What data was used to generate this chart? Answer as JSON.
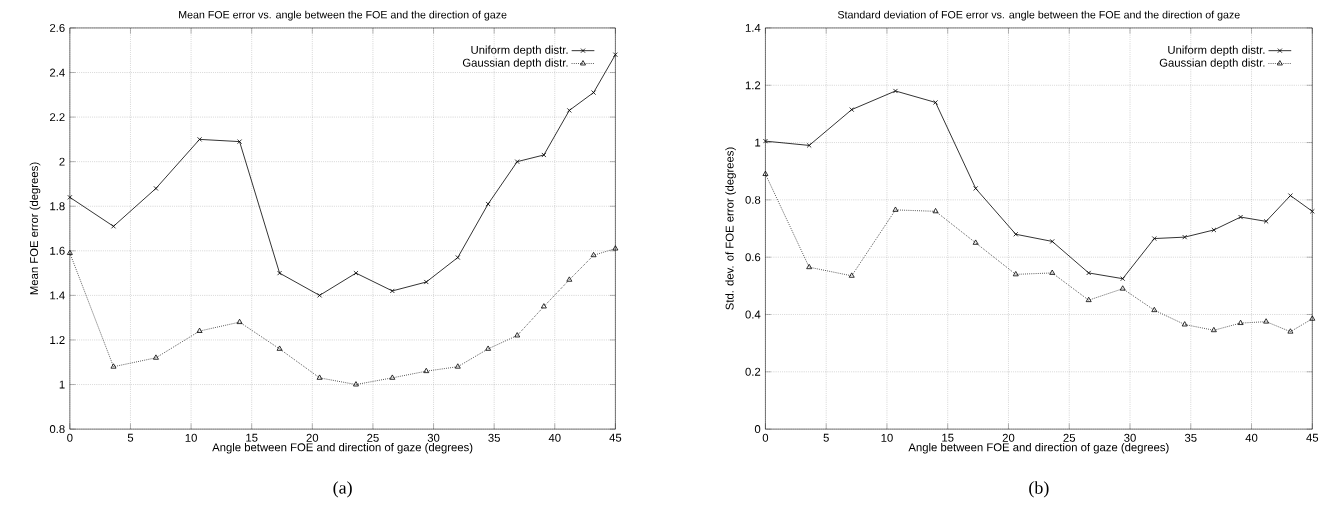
{
  "chart_data": [
    {
      "type": "line",
      "title": "Mean FOE error vs. angle between the FOE and the direction of gaze",
      "xlabel": "Angle between FOE and direction of gaze (degrees)",
      "ylabel": "Mean FOE error (degrees)",
      "annotations": [
        "(a)"
      ],
      "x": [
        0,
        3.6,
        7.1,
        10.7,
        14.0,
        17.3,
        20.6,
        23.6,
        26.6,
        29.4,
        32.0,
        34.5,
        36.9,
        39.1,
        41.2,
        43.2,
        45
      ],
      "series": [
        {
          "name": "Uniform depth distr.",
          "color": "#000000",
          "marker": "cross",
          "line_style": "solid",
          "values": [
            1.84,
            1.71,
            1.88,
            2.1,
            2.09,
            1.5,
            1.4,
            1.5,
            1.42,
            1.46,
            1.57,
            1.81,
            2.0,
            2.03,
            2.23,
            2.31,
            2.48
          ]
        },
        {
          "name": "Gaussian depth distr.",
          "color": "#000000",
          "marker": "triangle",
          "line_style": "dotted",
          "values": [
            1.59,
            1.08,
            1.12,
            1.24,
            1.28,
            1.16,
            1.03,
            1.0,
            1.03,
            1.06,
            1.08,
            1.16,
            1.22,
            1.35,
            1.47,
            1.58,
            1.61
          ]
        }
      ],
      "xlim": [
        0,
        45
      ],
      "xticks": [
        0,
        5,
        10,
        15,
        20,
        25,
        30,
        35,
        40,
        45
      ],
      "ylim": [
        0.8,
        2.6
      ],
      "yticks": [
        0.8,
        1,
        1.2,
        1.4,
        1.6,
        1.8,
        2,
        2.2,
        2.4,
        2.6
      ],
      "grid": true,
      "legend": "top right"
    },
    {
      "type": "line",
      "title": "Standard deviation of FOE error vs. angle between the FOE and the direction of gaze",
      "xlabel": "Angle between FOE and direction of gaze (degrees)",
      "ylabel": "Std. dev. of FOE error (degrees)",
      "annotations": [
        "(b)"
      ],
      "x": [
        0,
        3.6,
        7.1,
        10.7,
        14.0,
        17.3,
        20.6,
        23.6,
        26.6,
        29.4,
        32.0,
        34.5,
        36.9,
        39.1,
        41.2,
        43.2,
        45
      ],
      "series": [
        {
          "name": "Uniform depth distr.",
          "color": "#000000",
          "marker": "cross",
          "line_style": "solid",
          "values": [
            1.005,
            0.99,
            1.115,
            1.18,
            1.14,
            0.84,
            0.68,
            0.655,
            0.545,
            0.525,
            0.665,
            0.67,
            0.695,
            0.74,
            0.725,
            0.815,
            0.76
          ]
        },
        {
          "name": "Gaussian depth distr.",
          "color": "#000000",
          "marker": "triangle",
          "line_style": "dotted",
          "values": [
            0.89,
            0.565,
            0.535,
            0.765,
            0.76,
            0.65,
            0.54,
            0.545,
            0.45,
            0.49,
            0.415,
            0.365,
            0.345,
            0.37,
            0.375,
            0.34,
            0.385
          ]
        }
      ],
      "xlim": [
        0,
        45
      ],
      "xticks": [
        0,
        5,
        10,
        15,
        20,
        25,
        30,
        35,
        40,
        45
      ],
      "ylim": [
        0,
        1.4
      ],
      "yticks": [
        0,
        0.2,
        0.4,
        0.6,
        0.8,
        1,
        1.2,
        1.4
      ],
      "grid": true,
      "legend": "top right"
    }
  ]
}
